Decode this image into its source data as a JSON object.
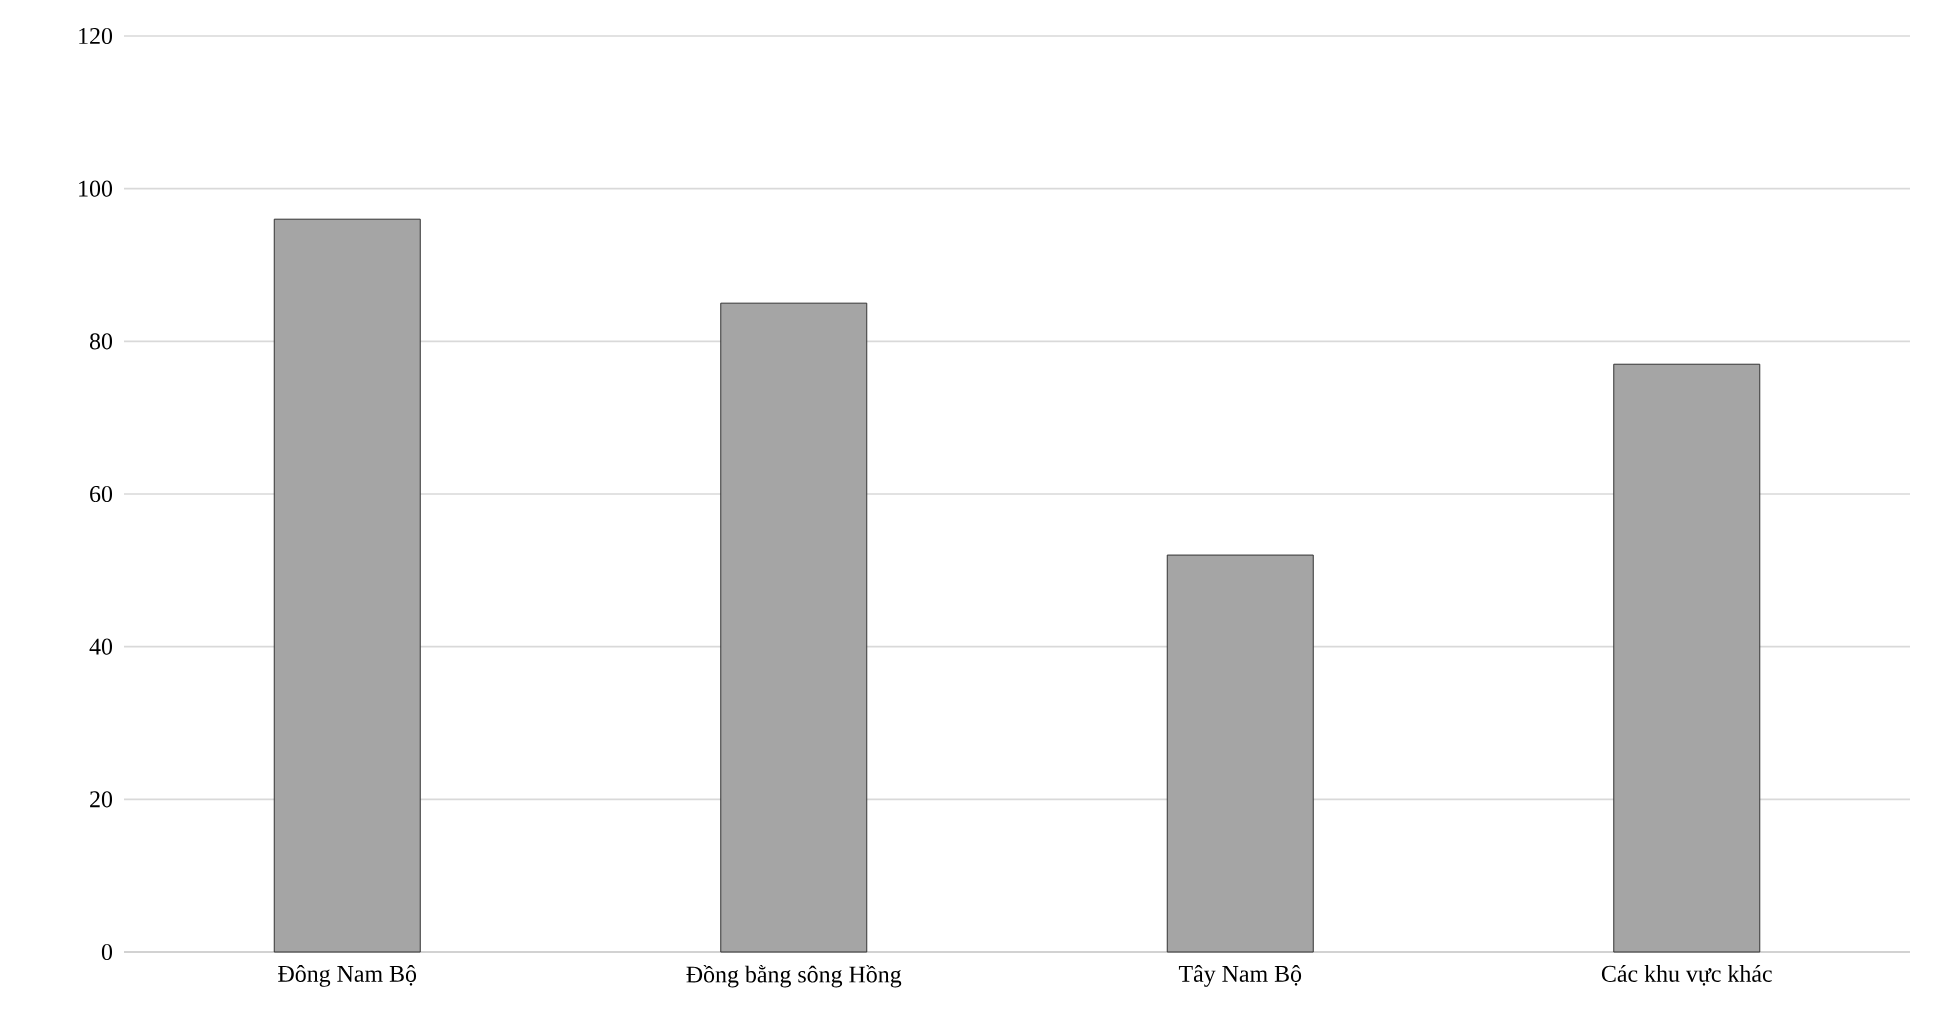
{
  "chart_data": {
    "type": "bar",
    "categories": [
      "Đông Nam Bộ",
      "Đồng bằng sông Hồng",
      "Tây Nam Bộ",
      "Các khu vực khác"
    ],
    "values": [
      96,
      85,
      52,
      77
    ],
    "color": "#a5a5a5",
    "ylim": [
      0,
      120
    ],
    "yticks": [
      0,
      20,
      40,
      60,
      80,
      100,
      120
    ],
    "grid": "y"
  }
}
